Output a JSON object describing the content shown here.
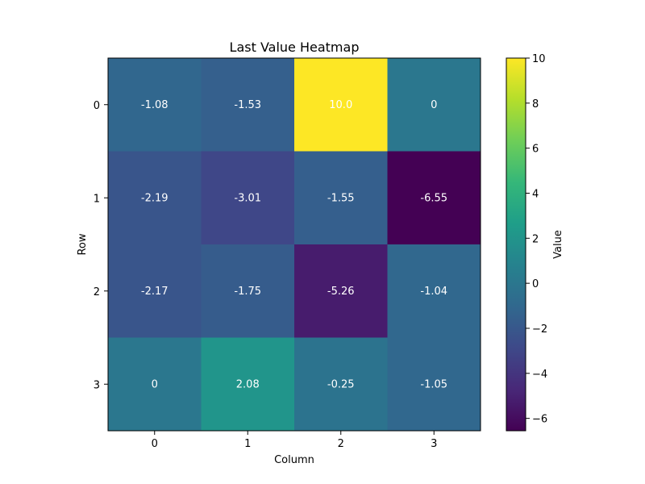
{
  "chart_data": {
    "type": "heatmap",
    "title": "Last Value Heatmap",
    "xlabel": "Column",
    "ylabel": "Row",
    "x_ticks": [
      "0",
      "1",
      "2",
      "3"
    ],
    "y_ticks": [
      "0",
      "1",
      "2",
      "3"
    ],
    "values": [
      [
        -1.08,
        -1.53,
        10.0,
        0
      ],
      [
        -2.19,
        -3.01,
        -1.55,
        -6.55
      ],
      [
        -2.17,
        -1.75,
        -5.26,
        -1.04
      ],
      [
        0,
        2.08,
        -0.25,
        -1.05
      ]
    ],
    "cell_labels": [
      [
        "-1.08",
        "-1.53",
        "10.0",
        "0"
      ],
      [
        "-2.19",
        "-3.01",
        "-1.55",
        "-6.55"
      ],
      [
        "-2.17",
        "-1.75",
        "-5.26",
        "-1.04"
      ],
      [
        "0",
        "2.08",
        "-0.25",
        "-1.05"
      ]
    ],
    "colormap": "viridis",
    "vmin": -6.55,
    "vmax": 10.0,
    "colorbar": {
      "label": "Value",
      "ticks": [
        -6,
        -4,
        -2,
        0,
        2,
        4,
        6,
        8,
        10
      ],
      "tick_labels": [
        "−6",
        "−4",
        "−2",
        "0",
        "2",
        "4",
        "6",
        "8",
        "10"
      ]
    },
    "cell_label_color": "#ffffff",
    "grid": false
  }
}
